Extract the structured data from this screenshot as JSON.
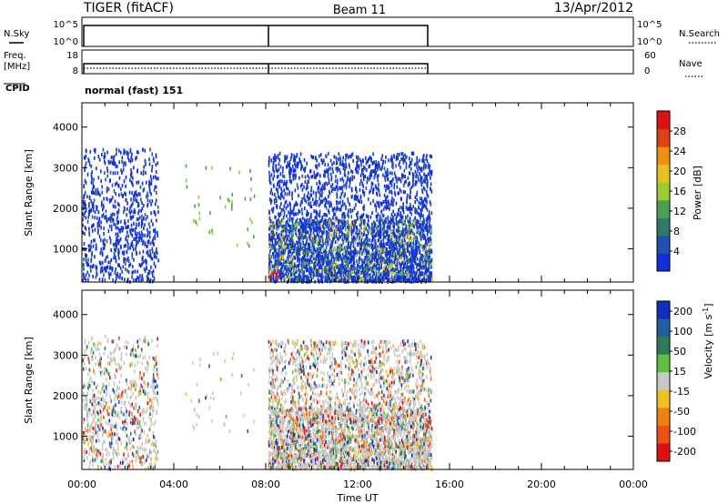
{
  "header": {
    "station": "TIGER (fitACF)",
    "beam": "Beam 11",
    "date": "13/Apr/2012"
  },
  "top_panels": {
    "nsky_label": "N.Sky",
    "nsky_ticks": [
      "10^5",
      "10^0"
    ],
    "nsearch_label": "N.Search",
    "freq_label_1": "Freq.",
    "freq_label_2": "[MHz]",
    "freq_ticks": [
      "18",
      "8"
    ],
    "nave_label": "Nave",
    "nave_ticks": [
      "60",
      "0"
    ],
    "cpid_label": "CPID",
    "cpid_value": "normal (fast) 151"
  },
  "chart_data": [
    {
      "type": "heatmap",
      "name": "power",
      "xlabel": "Time UT",
      "ylabel": "Slant Range [km]",
      "colorbar_label": "Power [dB]",
      "x_ticks": [
        "00:00",
        "04:00",
        "08:00",
        "12:00",
        "16:00",
        "20:00",
        "00:00"
      ],
      "x_range_hours": [
        0,
        24
      ],
      "y_ticks": [
        1000,
        2000,
        3000,
        4000
      ],
      "y_range_km": [
        180,
        4600
      ],
      "colorbar_ticks": [
        "4",
        "8",
        "12",
        "16",
        "20",
        "24",
        "28"
      ],
      "colorbar_colors": [
        "#1030e0",
        "#2050b0",
        "#2e7a6a",
        "#4aa050",
        "#9acd32",
        "#e8c020",
        "#f09010",
        "#e04010",
        "#e01010"
      ]
    },
    {
      "type": "heatmap",
      "name": "velocity",
      "xlabel": "Time UT",
      "ylabel": "Slant Range [km]",
      "colorbar_label": "Velocity [m s-1]",
      "x_ticks": [
        "00:00",
        "04:00",
        "08:00",
        "12:00",
        "16:00",
        "20:00",
        "00:00"
      ],
      "x_range_hours": [
        0,
        24
      ],
      "y_ticks": [
        1000,
        2000,
        3000,
        4000
      ],
      "y_range_km": [
        180,
        4600
      ],
      "colorbar_ticks": [
        "200",
        "100",
        "50",
        "15",
        "-15",
        "-50",
        "-100",
        "-200"
      ],
      "colorbar_colors": [
        "#1030c0",
        "#2060a0",
        "#2e7a5a",
        "#60c040",
        "#c8c8c8",
        "#f0c020",
        "#f08010",
        "#f05010",
        "#e01010"
      ]
    }
  ],
  "data_coverage_hours": [
    [
      0.0,
      3.3
    ],
    [
      8.1,
      15.2
    ]
  ]
}
